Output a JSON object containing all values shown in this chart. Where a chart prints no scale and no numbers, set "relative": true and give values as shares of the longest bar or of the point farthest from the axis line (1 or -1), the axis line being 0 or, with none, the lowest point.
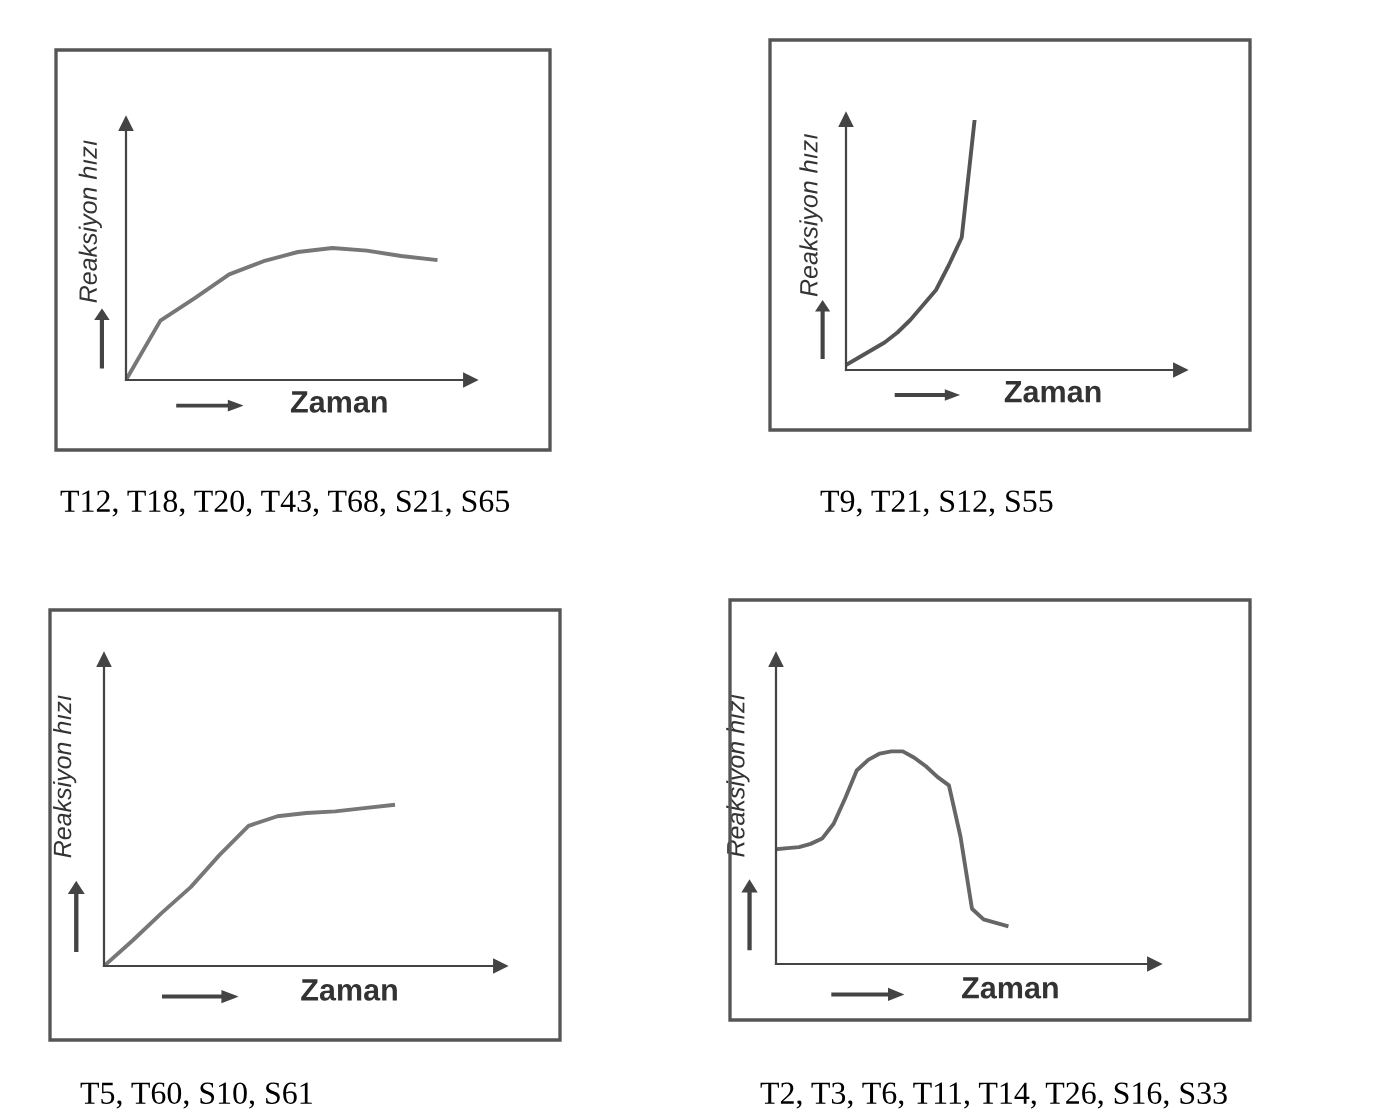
{
  "chart_data": [
    {
      "type": "line",
      "xlabel": "Zaman",
      "ylabel": "Reaksiyon hızı",
      "relative": true,
      "categories": [
        null,
        null,
        null,
        null,
        null,
        null,
        null,
        null,
        null,
        null
      ],
      "series": [
        {
          "color": "#777777",
          "values": [
            0,
            0.45,
            0.62,
            0.8,
            0.9,
            0.97,
            1.0,
            0.98,
            0.94,
            0.91
          ]
        }
      ],
      "annotations": [
        "T12, T18, T20, T43, T68, S21, S65"
      ]
    },
    {
      "type": "line",
      "xlabel": "Zaman",
      "ylabel": "Reaksiyon hızı",
      "relative": true,
      "categories": [
        null,
        null,
        null,
        null,
        null,
        null,
        null,
        null,
        null,
        null,
        null
      ],
      "series": [
        {
          "color": "#555555",
          "values": [
            0.02,
            0.05,
            0.08,
            0.11,
            0.15,
            0.2,
            0.26,
            0.32,
            0.42,
            0.53,
            1.0
          ]
        }
      ],
      "annotations": [
        "T9, T21, S12, S55"
      ]
    },
    {
      "type": "line",
      "xlabel": "Zaman",
      "ylabel": "Reaksiyon hızı",
      "relative": true,
      "categories": [
        null,
        null,
        null,
        null,
        null,
        null,
        null,
        null,
        null,
        null,
        null
      ],
      "series": [
        {
          "color": "#777777",
          "values": [
            0,
            0.16,
            0.33,
            0.49,
            0.69,
            0.87,
            0.93,
            0.95,
            0.96,
            0.98,
            1.0
          ]
        }
      ],
      "annotations": [
        "T5, T60, S10, S61"
      ]
    },
    {
      "type": "line",
      "xlabel": "Zaman",
      "ylabel": "Reaksiyon hızı",
      "relative": true,
      "categories": [
        null,
        null,
        null,
        null,
        null,
        null,
        null,
        null,
        null,
        null,
        null,
        null,
        null,
        null,
        null,
        null,
        null,
        null,
        null,
        null,
        null
      ],
      "series": [
        {
          "color": "#666666",
          "values": [
            0.54,
            0.545,
            0.55,
            0.565,
            0.59,
            0.66,
            0.78,
            0.91,
            0.96,
            0.99,
            1.0,
            1.0,
            0.97,
            0.93,
            0.88,
            0.84,
            0.6,
            0.26,
            0.21,
            0.195,
            0.18
          ]
        }
      ],
      "annotations": [
        "T2, T3, T6, T11, T14, T26, S16, S33"
      ]
    }
  ]
}
